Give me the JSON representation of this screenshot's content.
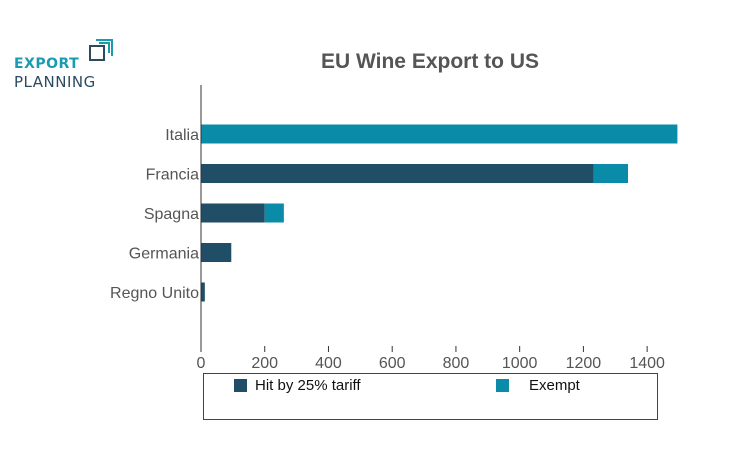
{
  "logo": {
    "line1": "EXPORT",
    "line2": "PLANNING"
  },
  "chart_data": {
    "type": "bar",
    "orientation": "horizontal",
    "stacked": true,
    "title": "EU Wine Export to US",
    "categories": [
      "Italia",
      "Francia",
      "Spagna",
      "Germania",
      "Regno Unito"
    ],
    "series": [
      {
        "name": "Hit by 25% tariff",
        "color": "#1f4e66",
        "values": [
          0,
          1232,
          200,
          95,
          12
        ]
      },
      {
        "name": "Exempt",
        "color": "#0a8ba7",
        "values": [
          1495,
          108,
          60,
          0,
          0
        ]
      }
    ],
    "xlim": [
      0,
      1500
    ],
    "xticks": [
      0,
      200,
      400,
      600,
      800,
      1000,
      1200,
      1400
    ],
    "grid": false,
    "legend_position": "bottom"
  }
}
